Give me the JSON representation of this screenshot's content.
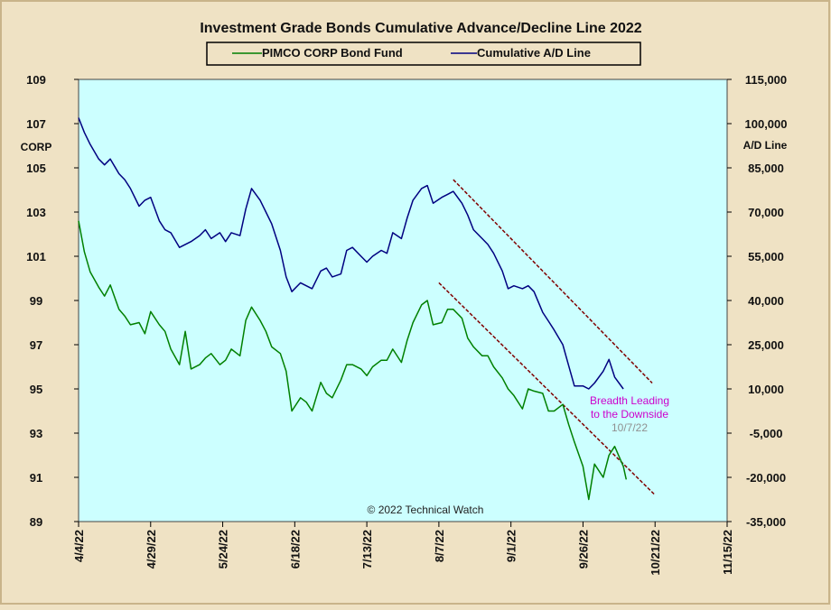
{
  "chart_data": {
    "type": "line",
    "title": "Investment Grade Bonds Cumulative  Advance/Decline  Line 2022",
    "left_axis_label": "CORP",
    "right_axis_label": "A/D Line",
    "copyright": "© 2022 Technical  Watch",
    "legend": [
      "PIMCO CORP Bond Fund",
      "Cumulative A/D Line"
    ],
    "left_axis": {
      "min": 89,
      "max": 109,
      "ticks": [
        "89",
        "91",
        "93",
        "95",
        "97",
        "99",
        "101",
        "103",
        "105",
        "107",
        "109"
      ]
    },
    "right_axis": {
      "min": -35000,
      "max": 115000,
      "ticks": [
        "-35,000",
        "-20,000",
        "-5,000",
        "10,000",
        "25,000",
        "40,000",
        "55,000",
        "70,000",
        "85,000",
        "100,000",
        "115,000"
      ]
    },
    "x_ticks": [
      "4/4/22",
      "4/29/22",
      "5/24/22",
      "6/18/22",
      "7/13/22",
      "8/7/22",
      "9/1/22",
      "9/26/22",
      "10/21/22",
      "11/15/22"
    ],
    "x_domain": [
      "2022-04-04",
      "2022-11-15"
    ],
    "series": [
      {
        "name": "PIMCO CORP Bond Fund",
        "axis": "left",
        "color": "#008000",
        "points": [
          [
            "2022-04-04",
            102.6
          ],
          [
            "2022-04-06",
            101.2
          ],
          [
            "2022-04-08",
            100.3
          ],
          [
            "2022-04-11",
            99.6
          ],
          [
            "2022-04-13",
            99.2
          ],
          [
            "2022-04-15",
            99.7
          ],
          [
            "2022-04-18",
            98.6
          ],
          [
            "2022-04-20",
            98.3
          ],
          [
            "2022-04-22",
            97.9
          ],
          [
            "2022-04-25",
            98.0
          ],
          [
            "2022-04-27",
            97.5
          ],
          [
            "2022-04-29",
            98.5
          ],
          [
            "2022-05-02",
            97.9
          ],
          [
            "2022-05-04",
            97.6
          ],
          [
            "2022-05-06",
            96.8
          ],
          [
            "2022-05-09",
            96.1
          ],
          [
            "2022-05-11",
            97.6
          ],
          [
            "2022-05-13",
            95.9
          ],
          [
            "2022-05-16",
            96.1
          ],
          [
            "2022-05-18",
            96.4
          ],
          [
            "2022-05-20",
            96.6
          ],
          [
            "2022-05-23",
            96.1
          ],
          [
            "2022-05-25",
            96.3
          ],
          [
            "2022-05-27",
            96.8
          ],
          [
            "2022-05-30",
            96.5
          ],
          [
            "2022-06-01",
            98.1
          ],
          [
            "2022-06-03",
            98.7
          ],
          [
            "2022-06-06",
            98.1
          ],
          [
            "2022-06-08",
            97.6
          ],
          [
            "2022-06-10",
            96.9
          ],
          [
            "2022-06-13",
            96.6
          ],
          [
            "2022-06-15",
            95.8
          ],
          [
            "2022-06-17",
            94.0
          ],
          [
            "2022-06-20",
            94.6
          ],
          [
            "2022-06-22",
            94.4
          ],
          [
            "2022-06-24",
            94.0
          ],
          [
            "2022-06-27",
            95.3
          ],
          [
            "2022-06-29",
            94.8
          ],
          [
            "2022-07-01",
            94.6
          ],
          [
            "2022-07-04",
            95.4
          ],
          [
            "2022-07-06",
            96.1
          ],
          [
            "2022-07-08",
            96.1
          ],
          [
            "2022-07-11",
            95.9
          ],
          [
            "2022-07-13",
            95.6
          ],
          [
            "2022-07-15",
            96.0
          ],
          [
            "2022-07-18",
            96.3
          ],
          [
            "2022-07-20",
            96.3
          ],
          [
            "2022-07-22",
            96.8
          ],
          [
            "2022-07-25",
            96.2
          ],
          [
            "2022-07-27",
            97.2
          ],
          [
            "2022-07-29",
            98.0
          ],
          [
            "2022-08-01",
            98.8
          ],
          [
            "2022-08-03",
            99.0
          ],
          [
            "2022-08-05",
            97.9
          ],
          [
            "2022-08-08",
            98.0
          ],
          [
            "2022-08-10",
            98.6
          ],
          [
            "2022-08-12",
            98.6
          ],
          [
            "2022-08-15",
            98.2
          ],
          [
            "2022-08-17",
            97.3
          ],
          [
            "2022-08-19",
            96.9
          ],
          [
            "2022-08-22",
            96.5
          ],
          [
            "2022-08-24",
            96.5
          ],
          [
            "2022-08-26",
            96.0
          ],
          [
            "2022-08-29",
            95.5
          ],
          [
            "2022-08-31",
            95.0
          ],
          [
            "2022-09-02",
            94.7
          ],
          [
            "2022-09-05",
            94.1
          ],
          [
            "2022-09-07",
            95.0
          ],
          [
            "2022-09-09",
            94.9
          ],
          [
            "2022-09-12",
            94.8
          ],
          [
            "2022-09-14",
            94.0
          ],
          [
            "2022-09-16",
            94.0
          ],
          [
            "2022-09-19",
            94.3
          ],
          [
            "2022-09-21",
            93.4
          ],
          [
            "2022-09-23",
            92.6
          ],
          [
            "2022-09-26",
            91.5
          ],
          [
            "2022-09-28",
            90.0
          ],
          [
            "2022-09-30",
            91.6
          ],
          [
            "2022-10-03",
            91.0
          ],
          [
            "2022-10-05",
            92.0
          ],
          [
            "2022-10-07",
            92.4
          ],
          [
            "2022-10-10",
            91.5
          ],
          [
            "2022-10-11",
            90.9
          ]
        ]
      },
      {
        "name": "Cumulative A/D Line",
        "axis": "right",
        "color": "#000080",
        "points": [
          [
            "2022-04-04",
            102000
          ],
          [
            "2022-04-06",
            97000
          ],
          [
            "2022-04-08",
            93000
          ],
          [
            "2022-04-11",
            88000
          ],
          [
            "2022-04-13",
            86000
          ],
          [
            "2022-04-15",
            88000
          ],
          [
            "2022-04-18",
            83000
          ],
          [
            "2022-04-20",
            81000
          ],
          [
            "2022-04-22",
            78000
          ],
          [
            "2022-04-25",
            72000
          ],
          [
            "2022-04-27",
            74000
          ],
          [
            "2022-04-29",
            75000
          ],
          [
            "2022-05-02",
            67000
          ],
          [
            "2022-05-04",
            64000
          ],
          [
            "2022-05-06",
            63000
          ],
          [
            "2022-05-09",
            58000
          ],
          [
            "2022-05-11",
            59000
          ],
          [
            "2022-05-13",
            60000
          ],
          [
            "2022-05-16",
            62000
          ],
          [
            "2022-05-18",
            64000
          ],
          [
            "2022-05-20",
            61000
          ],
          [
            "2022-05-23",
            63000
          ],
          [
            "2022-05-25",
            60000
          ],
          [
            "2022-05-27",
            63000
          ],
          [
            "2022-05-30",
            62000
          ],
          [
            "2022-06-01",
            71000
          ],
          [
            "2022-06-03",
            78000
          ],
          [
            "2022-06-06",
            74000
          ],
          [
            "2022-06-08",
            70000
          ],
          [
            "2022-06-10",
            66000
          ],
          [
            "2022-06-13",
            57000
          ],
          [
            "2022-06-15",
            48000
          ],
          [
            "2022-06-17",
            43000
          ],
          [
            "2022-06-20",
            46000
          ],
          [
            "2022-06-22",
            45000
          ],
          [
            "2022-06-24",
            44000
          ],
          [
            "2022-06-27",
            50000
          ],
          [
            "2022-06-29",
            51000
          ],
          [
            "2022-07-01",
            48000
          ],
          [
            "2022-07-04",
            49000
          ],
          [
            "2022-07-06",
            57000
          ],
          [
            "2022-07-08",
            58000
          ],
          [
            "2022-07-11",
            55000
          ],
          [
            "2022-07-13",
            53000
          ],
          [
            "2022-07-15",
            55000
          ],
          [
            "2022-07-18",
            57000
          ],
          [
            "2022-07-20",
            56000
          ],
          [
            "2022-07-22",
            63000
          ],
          [
            "2022-07-25",
            61000
          ],
          [
            "2022-07-27",
            68000
          ],
          [
            "2022-07-29",
            74000
          ],
          [
            "2022-08-01",
            78000
          ],
          [
            "2022-08-03",
            79000
          ],
          [
            "2022-08-05",
            73000
          ],
          [
            "2022-08-08",
            75000
          ],
          [
            "2022-08-10",
            76000
          ],
          [
            "2022-08-12",
            77000
          ],
          [
            "2022-08-15",
            73000
          ],
          [
            "2022-08-17",
            69000
          ],
          [
            "2022-08-19",
            64000
          ],
          [
            "2022-08-22",
            61000
          ],
          [
            "2022-08-24",
            59000
          ],
          [
            "2022-08-26",
            56000
          ],
          [
            "2022-08-29",
            50000
          ],
          [
            "2022-08-31",
            44000
          ],
          [
            "2022-09-02",
            45000
          ],
          [
            "2022-09-05",
            44000
          ],
          [
            "2022-09-07",
            45000
          ],
          [
            "2022-09-09",
            43000
          ],
          [
            "2022-09-12",
            36000
          ],
          [
            "2022-09-14",
            33000
          ],
          [
            "2022-09-16",
            30000
          ],
          [
            "2022-09-19",
            25000
          ],
          [
            "2022-09-21",
            18000
          ],
          [
            "2022-09-23",
            11000
          ],
          [
            "2022-09-26",
            11000
          ],
          [
            "2022-09-28",
            10000
          ],
          [
            "2022-09-30",
            12000
          ],
          [
            "2022-10-03",
            16000
          ],
          [
            "2022-10-05",
            20000
          ],
          [
            "2022-10-07",
            14000
          ],
          [
            "2022-10-10",
            10000
          ]
        ]
      }
    ],
    "trendlines": [
      {
        "axis": "left",
        "from": [
          "2022-08-07",
          99.8
        ],
        "to": [
          "2022-10-21",
          90.2
        ],
        "color": "#800000"
      },
      {
        "axis": "right",
        "from": [
          "2022-08-12",
          81000
        ],
        "to": [
          "2022-10-20",
          12000
        ],
        "color": "#800000"
      }
    ],
    "annotations": [
      {
        "text": "Breadth Leading",
        "color": "#cc00cc"
      },
      {
        "text": "to the Downside",
        "color": "#cc00cc"
      },
      {
        "text": "10/7/22",
        "color": "#909090"
      }
    ],
    "colors": {
      "plot_background": "#ccffff",
      "frame_background": "#efe2c4"
    }
  }
}
